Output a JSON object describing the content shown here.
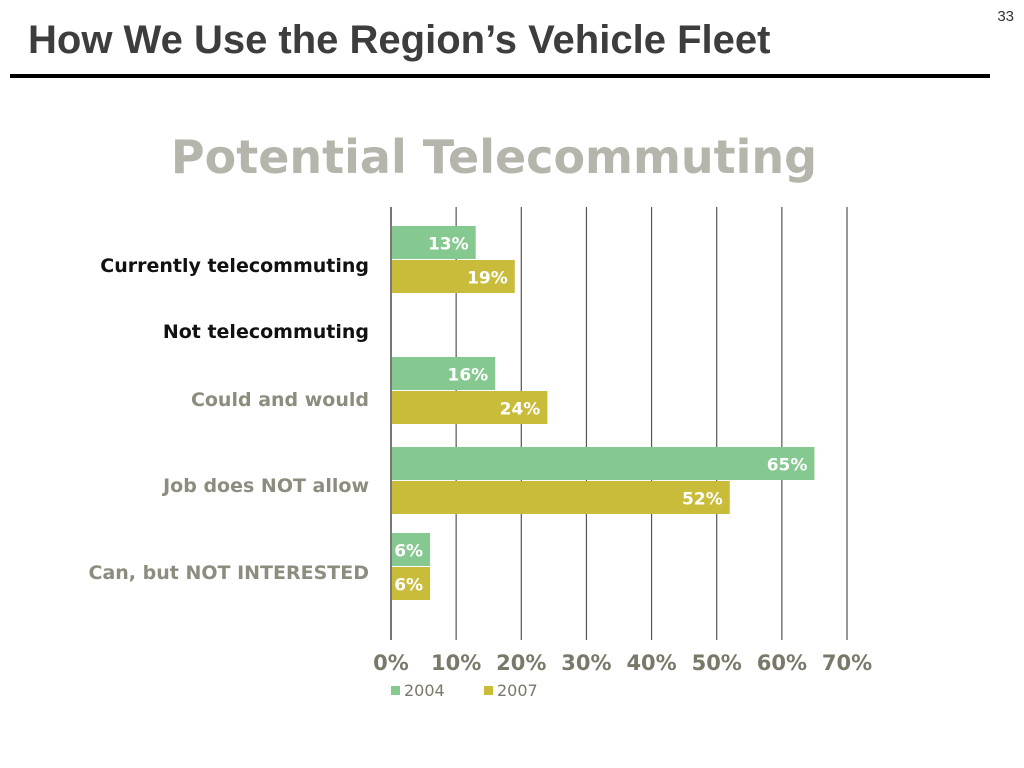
{
  "slide": {
    "number": "33",
    "title": "How We Use the Region’s Vehicle Fleet"
  },
  "chart_data": {
    "type": "bar",
    "orientation": "horizontal",
    "title": "Potential Telecommuting",
    "categories": [
      {
        "label": "Currently telecommuting",
        "style": "header"
      },
      {
        "label": "Not telecommuting",
        "style": "header",
        "no_bars": true
      },
      {
        "label": "Could and would",
        "style": "sub"
      },
      {
        "label": "Job does NOT allow",
        "style": "sub"
      },
      {
        "label": "Can, but NOT INTERESTED",
        "style": "sub"
      }
    ],
    "series": [
      {
        "name": "2004",
        "color": "#86c990",
        "values": [
          13,
          null,
          16,
          65,
          6
        ],
        "labels": [
          "13%",
          "",
          "16%",
          "65%",
          "6%"
        ]
      },
      {
        "name": "2007",
        "color": "#c9bc3a",
        "values": [
          19,
          null,
          24,
          52,
          6
        ],
        "labels": [
          "19%",
          "",
          "24%",
          "52%",
          "6%"
        ]
      }
    ],
    "x_ticks": [
      "0%",
      "10%",
      "20%",
      "30%",
      "40%",
      "50%",
      "60%",
      "70%"
    ],
    "xlim": [
      0,
      70
    ],
    "grid": true,
    "legend_position": "bottom",
    "colors": {
      "title": "#b5b5ab",
      "header_label": "#111111",
      "sub_label": "#8e8c7e",
      "grid": "#555555",
      "tick_label": "#7a7868",
      "bar_label": "#ffffff"
    }
  }
}
